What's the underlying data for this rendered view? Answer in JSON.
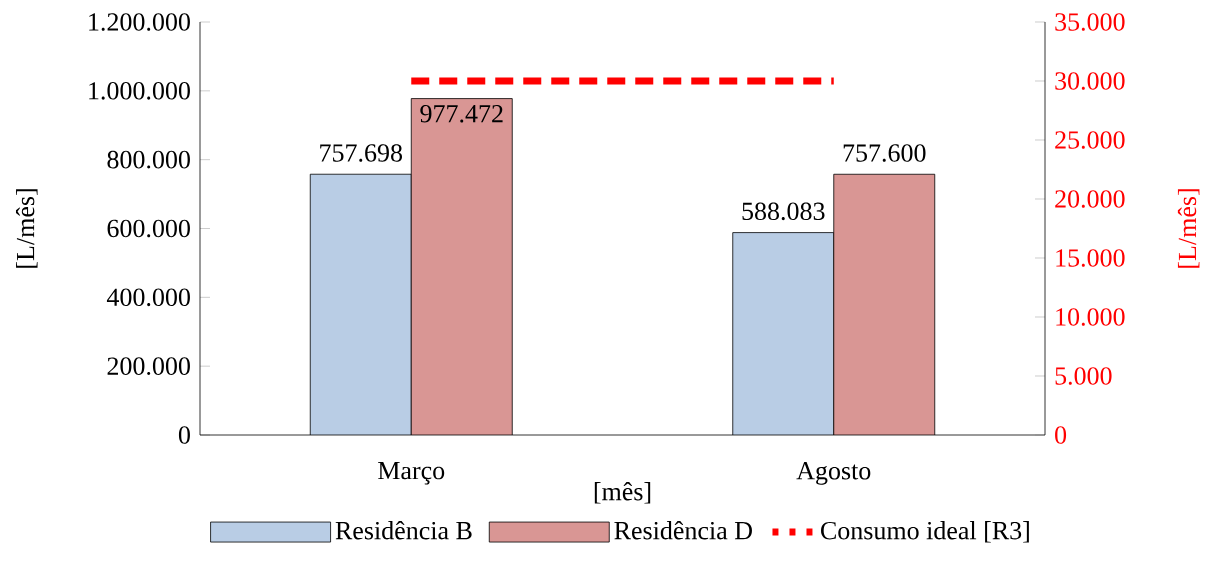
{
  "chart_data": {
    "type": "bar",
    "categories": [
      "Março",
      "Agosto"
    ],
    "series": [
      {
        "name": "Residência B",
        "color": "#b9cde5",
        "values": [
          757698,
          588083
        ],
        "value_labels": [
          "757.698",
          "588.083"
        ]
      },
      {
        "name": "Residência D",
        "color": "#d99694",
        "values": [
          977472,
          757600
        ],
        "value_labels": [
          "977.472",
          "757.600"
        ]
      },
      {
        "name": "Consumo ideal [R3]",
        "type": "line",
        "axis": "y2",
        "color": "#ff0000",
        "line_style": "dashed",
        "values": [
          30000,
          30000
        ]
      }
    ],
    "xlabel": "[mês]",
    "ylabel": "[L/mês]",
    "y2label": "[L/mês]",
    "ylim": [
      0,
      1200000
    ],
    "yticks": [
      0,
      {
        "value": 200000,
        "label": "200.000"
      },
      {
        "value": 400000,
        "label": "400.000"
      },
      {
        "value": 600000,
        "label": "600.000"
      },
      {
        "value": 800000,
        "label": "800.000"
      },
      {
        "value": 1000000,
        "label": "1.000.000"
      },
      {
        "value": 1200000,
        "label": "1.200.000"
      }
    ],
    "y2lim": [
      0,
      35000
    ],
    "y2ticks": [
      0,
      {
        "value": 5000,
        "label": "5.000"
      },
      {
        "value": 10000,
        "label": "10.000"
      },
      {
        "value": 15000,
        "label": "15.000"
      },
      {
        "value": 20000,
        "label": "20.000"
      },
      {
        "value": 25000,
        "label": "25.000"
      },
      {
        "value": 30000,
        "label": "30.000"
      },
      {
        "value": 35000,
        "label": "35.000"
      }
    ],
    "legend": "bottom"
  }
}
